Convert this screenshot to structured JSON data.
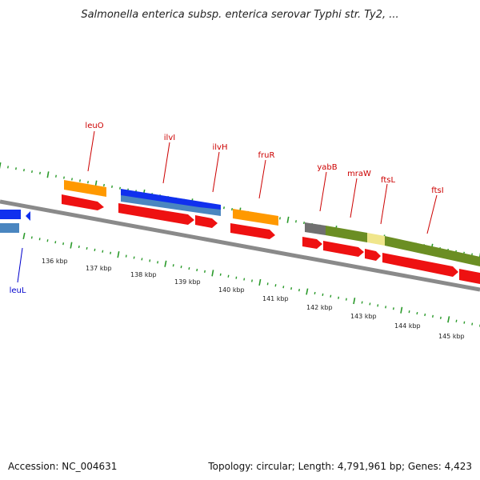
{
  "title": "Salmonella enterica subsp. enterica serovar Typhi str. Ty2, ...",
  "footer": {
    "accession": "Accession: NC_004631",
    "topology": "Topology: circular; Length: 4,791,961 bp; Genes: 4,423"
  },
  "colors": {
    "backbone": "#8a8a8a",
    "tick": "#2a9a2a",
    "label_red": "#cc0000",
    "label_blue": "#0000cc",
    "cds_red": "#ee1111",
    "orange": "#ff9900",
    "blue": "#1030ee",
    "steel": "#4a86c0",
    "olive": "#6b8e23",
    "gray": "#707070",
    "khaki": "#f0e68c"
  },
  "scale_labels": [
    "136 kbp",
    "137 kbp",
    "138 kbp",
    "139 kbp",
    "140 kbp",
    "141 kbp",
    "142 kbp",
    "143 kbp",
    "144 kbp",
    "145 kbp"
  ],
  "genes": [
    {
      "name": "leuO",
      "color": "label_red"
    },
    {
      "name": "ilvI",
      "color": "label_red"
    },
    {
      "name": "ilvH",
      "color": "label_red"
    },
    {
      "name": "fruR",
      "color": "label_red"
    },
    {
      "name": "yabB",
      "color": "label_red"
    },
    {
      "name": "mraW",
      "color": "label_red"
    },
    {
      "name": "ftsL",
      "color": "label_red"
    },
    {
      "name": "ftsI",
      "color": "label_red"
    },
    {
      "name": "leuL",
      "color": "label_blue"
    }
  ]
}
